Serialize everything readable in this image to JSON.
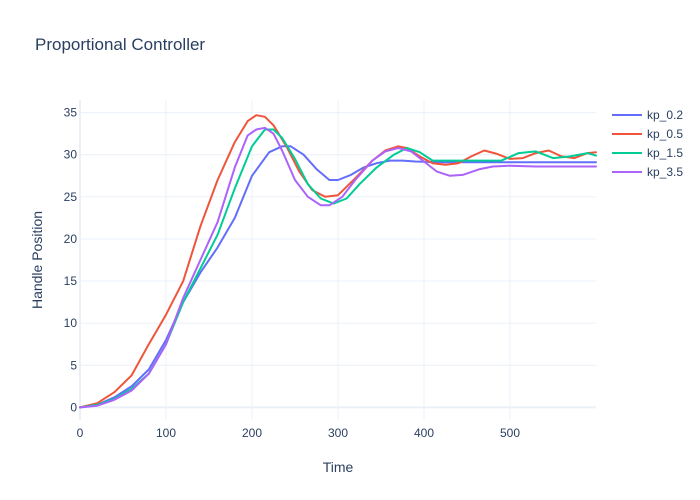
{
  "chart_data": {
    "type": "line",
    "title": "Proportional Controller",
    "xlabel": "Time",
    "ylabel": "Handle Position",
    "xlim": [
      0,
      600
    ],
    "ylim": [
      -1.5,
      36.5
    ],
    "x_ticks": [
      0,
      100,
      200,
      300,
      400,
      500
    ],
    "y_ticks": [
      0,
      5,
      10,
      15,
      20,
      25,
      30,
      35
    ],
    "grid": true,
    "legend_position": "top-right",
    "series": [
      {
        "name": "kp_0.2",
        "color": "#636efa",
        "x": [
          0,
          20,
          40,
          60,
          80,
          100,
          120,
          140,
          160,
          180,
          200,
          220,
          235,
          245,
          260,
          275,
          290,
          300,
          315,
          330,
          345,
          360,
          375,
          390,
          420,
          460,
          500,
          540,
          580,
          600
        ],
        "y": [
          0,
          0.3,
          1.2,
          2.5,
          4.5,
          8,
          12.5,
          16,
          19,
          22.5,
          27.5,
          30.3,
          31,
          31,
          30,
          28.3,
          27,
          27,
          27.6,
          28.5,
          29,
          29.3,
          29.3,
          29.2,
          29.1,
          29.1,
          29.1,
          29.1,
          29.1,
          29.1
        ]
      },
      {
        "name": "kp_0.5",
        "color": "#ef553b",
        "x": [
          0,
          20,
          40,
          60,
          80,
          100,
          120,
          140,
          160,
          180,
          195,
          205,
          215,
          225,
          240,
          255,
          270,
          285,
          300,
          320,
          340,
          355,
          370,
          380,
          395,
          410,
          425,
          440,
          455,
          470,
          485,
          500,
          515,
          530,
          545,
          560,
          575,
          590,
          600
        ],
        "y": [
          0,
          0.5,
          1.8,
          3.8,
          7.5,
          11,
          15,
          21.5,
          27,
          31.5,
          34,
          34.7,
          34.5,
          33.5,
          31,
          28,
          25.8,
          25,
          25.2,
          27.2,
          29.3,
          30.5,
          31,
          30.8,
          29.8,
          29,
          28.8,
          29,
          29.8,
          30.5,
          30.1,
          29.5,
          29.6,
          30.2,
          30.5,
          29.8,
          29.6,
          30.2,
          30.3
        ]
      },
      {
        "name": "kp_1.5",
        "color": "#00cc96",
        "x": [
          0,
          20,
          40,
          60,
          80,
          100,
          120,
          140,
          160,
          180,
          200,
          215,
          225,
          235,
          250,
          265,
          280,
          295,
          310,
          325,
          345,
          365,
          380,
          395,
          410,
          430,
          460,
          490,
          510,
          530,
          550,
          570,
          590,
          600
        ],
        "y": [
          0,
          0.3,
          1,
          2.2,
          4,
          7.5,
          12.5,
          16.5,
          20.5,
          26,
          31,
          33,
          33,
          32,
          29.5,
          26.5,
          24.8,
          24.2,
          24.8,
          26.5,
          28.5,
          30,
          30.8,
          30.3,
          29.3,
          29.3,
          29.3,
          29.3,
          30.2,
          30.4,
          29.6,
          29.8,
          30.2,
          29.9
        ]
      },
      {
        "name": "kp_3.5",
        "color": "#ab63fa",
        "x": [
          0,
          20,
          40,
          60,
          80,
          100,
          120,
          140,
          160,
          180,
          195,
          205,
          215,
          225,
          235,
          250,
          265,
          280,
          290,
          305,
          320,
          340,
          355,
          370,
          385,
          400,
          415,
          430,
          445,
          465,
          480,
          500,
          530,
          560,
          600
        ],
        "y": [
          0,
          0.2,
          0.9,
          2,
          4,
          7.5,
          13,
          17.5,
          22,
          28.5,
          32.3,
          33,
          33.2,
          32.5,
          30.5,
          27,
          25,
          24,
          24,
          25,
          27,
          29.3,
          30.4,
          30.8,
          30.4,
          29.2,
          28,
          27.5,
          27.6,
          28.3,
          28.6,
          28.7,
          28.6,
          28.6,
          28.6
        ]
      }
    ]
  }
}
